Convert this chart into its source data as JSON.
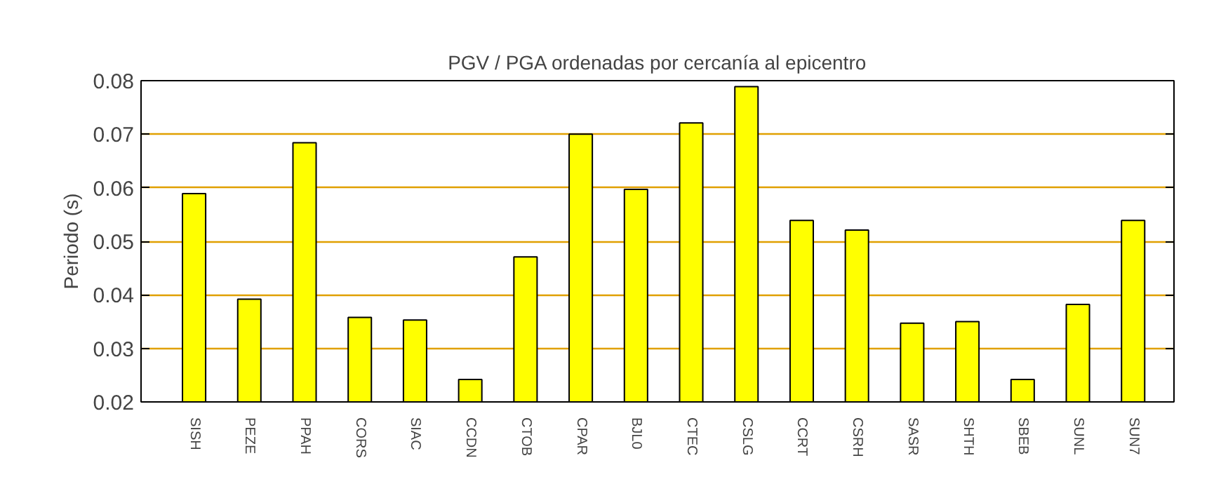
{
  "chart_data": {
    "type": "bar",
    "title": "PGV / PGA ordenadas por cercanía al epicentro",
    "ylabel": "Periodo (s)",
    "categories": [
      "SISH",
      "PEZE",
      "PPAH",
      "CORS",
      "SIAC",
      "CCDN",
      "CTOB",
      "CPAR",
      "BJL0",
      "CTEC",
      "CSLG",
      "CCRT",
      "CSRH",
      "SASR",
      "SHTH",
      "SBEB",
      "SUNL",
      "SUN7"
    ],
    "values": [
      0.0589,
      0.0392,
      0.0684,
      0.0358,
      0.0353,
      0.0242,
      0.0471,
      0.07,
      0.0597,
      0.0721,
      0.0789,
      0.0539,
      0.0521,
      0.0347,
      0.035,
      0.0242,
      0.0382,
      0.0539
    ],
    "color": "#ffff00",
    "ylim": [
      0.02,
      0.08
    ],
    "yticks": [
      {
        "value": 0.02,
        "label": "0.02"
      },
      {
        "value": 0.03,
        "label": "0.03"
      },
      {
        "value": 0.04,
        "label": "0.04"
      },
      {
        "value": 0.05,
        "label": "0.05"
      },
      {
        "value": 0.06,
        "label": "0.06"
      },
      {
        "value": 0.07,
        "label": "0.07"
      },
      {
        "value": 0.08,
        "label": "0.08"
      }
    ],
    "grid": "y"
  }
}
